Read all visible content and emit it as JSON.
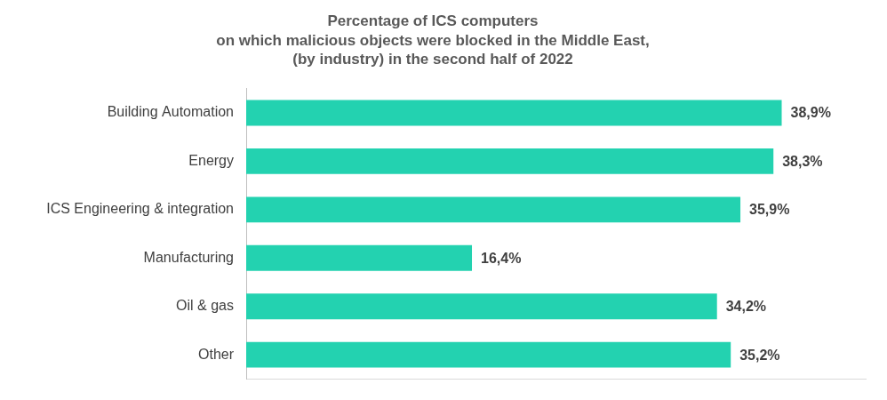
{
  "chart_data": {
    "type": "bar",
    "orientation": "horizontal",
    "title": "Percentage of ICS computers\non which malicious objects were blocked in the Middle East,\n(by industry) in the second half of 2022",
    "categories": [
      "Building Automation",
      "Energy",
      "ICS Engineering & integration",
      "Manufacturing",
      "Oil & gas",
      "Other"
    ],
    "values": [
      38.9,
      38.3,
      35.9,
      16.4,
      34.2,
      35.2
    ],
    "value_labels": [
      "38,9%",
      "38,3%",
      "35,9%",
      "16,4%",
      "34,2%",
      "35,2%"
    ],
    "color": "#23d2b0",
    "xlim": [
      0,
      45
    ],
    "grid": false,
    "data_labels": true,
    "tick_labels": "y"
  }
}
